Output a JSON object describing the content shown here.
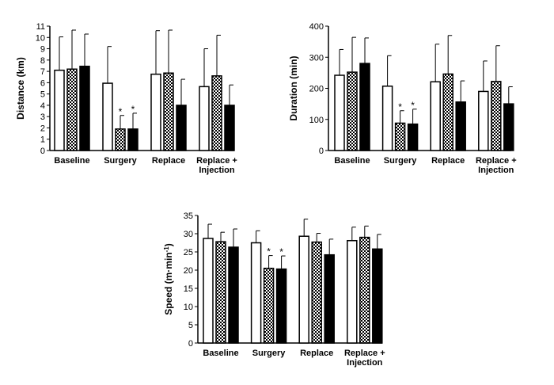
{
  "chart_data": [
    {
      "type": "bar",
      "ylabel": "Distance (km)",
      "ylim": [
        0,
        11
      ],
      "yticks": [
        "0",
        "1",
        "2",
        "3",
        "4",
        "5",
        "6",
        "7",
        "8",
        "9",
        "10",
        "11"
      ],
      "categories": [
        "Baseline",
        "Surgery",
        "Replace",
        "Replace +\nInjection"
      ],
      "series": [
        {
          "fill": "white",
          "values": [
            7.1,
            5.95,
            6.75,
            5.65
          ],
          "errors": [
            2.95,
            3.25,
            3.85,
            3.35
          ]
        },
        {
          "fill": "checkered",
          "values": [
            7.2,
            1.9,
            6.85,
            6.6
          ],
          "errors": [
            3.45,
            1.2,
            3.8,
            3.6
          ]
        },
        {
          "fill": "black",
          "values": [
            7.45,
            1.9,
            4.0,
            4.0
          ],
          "errors": [
            2.85,
            1.4,
            2.3,
            1.8
          ]
        }
      ],
      "significance": [
        {
          "category": 1,
          "series": 1,
          "mark": "*"
        },
        {
          "category": 1,
          "series": 2,
          "mark": "*"
        }
      ]
    },
    {
      "type": "bar",
      "ylabel": "Duration (min)",
      "ylim": [
        0,
        400
      ],
      "yticks": [
        "0",
        "100",
        "200",
        "300",
        "400"
      ],
      "categories": [
        "Baseline",
        "Surgery",
        "Replace",
        "Replace +\nInjection"
      ],
      "series": [
        {
          "fill": "white",
          "values": [
            242,
            207,
            221,
            190
          ],
          "errors": [
            83,
            98,
            121,
            98
          ]
        },
        {
          "fill": "checkered",
          "values": [
            252,
            88,
            246,
            222
          ],
          "errors": [
            112,
            40,
            124,
            115
          ]
        },
        {
          "fill": "black",
          "values": [
            280,
            85,
            156,
            150
          ],
          "errors": [
            82,
            48,
            68,
            55
          ]
        }
      ],
      "significance": [
        {
          "category": 1,
          "series": 1,
          "mark": "*"
        },
        {
          "category": 1,
          "series": 2,
          "mark": "*"
        }
      ]
    },
    {
      "type": "bar",
      "ylabel": "Speed (m·min",
      "ylabel_sup": "-1",
      "ylabel_end": ")",
      "ylim": [
        0,
        35
      ],
      "yticks": [
        "0",
        "5",
        "10",
        "15",
        "20",
        "25",
        "30",
        "35"
      ],
      "categories": [
        "Baseline",
        "Surgery",
        "Replace",
        "Replace +\nInjection"
      ],
      "series": [
        {
          "fill": "white",
          "values": [
            28.7,
            27.5,
            29.3,
            28.1
          ],
          "errors": [
            3.9,
            3.3,
            4.7,
            3.7
          ]
        },
        {
          "fill": "checkered",
          "values": [
            27.8,
            20.5,
            27.7,
            29.0
          ],
          "errors": [
            2.6,
            3.5,
            2.4,
            3.1
          ]
        },
        {
          "fill": "black",
          "values": [
            26.3,
            20.3,
            24.2,
            25.8
          ],
          "errors": [
            5.0,
            3.6,
            4.3,
            4.0
          ]
        }
      ],
      "significance": [
        {
          "category": 1,
          "series": 1,
          "mark": "*"
        },
        {
          "category": 1,
          "series": 2,
          "mark": "*"
        }
      ]
    }
  ]
}
